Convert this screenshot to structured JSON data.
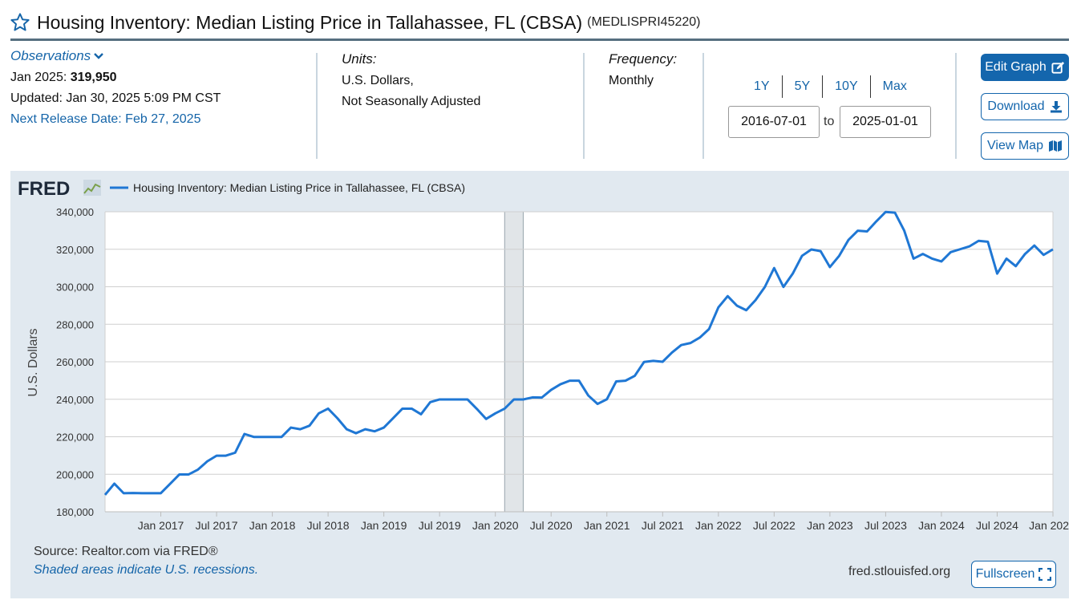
{
  "header": {
    "title": "Housing Inventory: Median Listing Price in Tallahassee, FL (CBSA)",
    "series_id": "(MEDLISPRI45220)"
  },
  "observations": {
    "toggle_label": "Observations",
    "latest_label": "Jan 2025:",
    "latest_value": "319,950",
    "updated": "Updated: Jan 30, 2025 5:09 PM CST",
    "next_release": "Next Release Date: Feb 27, 2025"
  },
  "units": {
    "label": "Units:",
    "line1": "U.S. Dollars,",
    "line2": "Not Seasonally Adjusted"
  },
  "frequency": {
    "label": "Frequency:",
    "value": "Monthly"
  },
  "range": {
    "buttons": [
      "1Y",
      "5Y",
      "10Y",
      "Max"
    ],
    "start": "2016-07-01",
    "to_label": "to",
    "end": "2025-01-01"
  },
  "actions": {
    "edit_graph": "Edit Graph",
    "download": "Download",
    "view_map": "View Map"
  },
  "footer": {
    "source": "Source: Realtor.com via FRED®",
    "recession_note": "Shaded areas indicate U.S. recessions.",
    "url": "fred.stlouisfed.org",
    "fullscreen": "Fullscreen"
  },
  "colors": {
    "line": "#1f77d4",
    "link": "#1565a9",
    "panel": "#e1e9f0",
    "recession": "#e1e5e8"
  },
  "chart_data": {
    "type": "line",
    "logo": "FRED",
    "legend": "Housing Inventory: Median Listing Price in Tallahassee, FL (CBSA)",
    "ylabel": "U.S. Dollars",
    "ylim": [
      180000,
      340000
    ],
    "y_ticks": [
      180000,
      200000,
      220000,
      240000,
      260000,
      280000,
      300000,
      320000,
      340000
    ],
    "y_tick_labels": [
      "180,000",
      "200,000",
      "220,000",
      "240,000",
      "260,000",
      "280,000",
      "300,000",
      "320,000",
      "340,000"
    ],
    "x_tick_labels": [
      "Jan 2017",
      "Jul 2017",
      "Jan 2018",
      "Jul 2018",
      "Jan 2019",
      "Jul 2019",
      "Jan 2020",
      "Jul 2020",
      "Jan 2021",
      "Jul 2021",
      "Jan 2022",
      "Jul 2022",
      "Jan 2023",
      "Jul 2023",
      "Jan 2024",
      "Jul 2024",
      "Jan 202"
    ],
    "x_tick_month_index": [
      6,
      12,
      18,
      24,
      30,
      36,
      42,
      48,
      54,
      60,
      66,
      72,
      78,
      84,
      90,
      96,
      102
    ],
    "start": "2016-07",
    "recession": {
      "start_month_index": 43,
      "end_month_index": 45
    },
    "values": [
      189000,
      195000,
      189900,
      190000,
      189900,
      189900,
      189900,
      194900,
      199900,
      199900,
      202500,
      206900,
      209900,
      209900,
      211500,
      221500,
      219900,
      219900,
      219900,
      219900,
      224900,
      224000,
      225900,
      232500,
      235000,
      229900,
      224000,
      221900,
      224000,
      222900,
      224900,
      229900,
      235000,
      235000,
      232000,
      238500,
      239900,
      239900,
      239900,
      239900,
      234900,
      229500,
      232500,
      235000,
      239900,
      239900,
      241000,
      240900,
      245000,
      248000,
      249900,
      249900,
      242000,
      237500,
      240000,
      249500,
      249900,
      252500,
      259900,
      260500,
      260000,
      264900,
      268900,
      270000,
      272900,
      277500,
      289000,
      295000,
      289900,
      287500,
      292900,
      299900,
      310000,
      299900,
      307000,
      316500,
      319900,
      319000,
      310500,
      316500,
      325000,
      329900,
      329500,
      334900,
      339900,
      339500,
      329900,
      315000,
      317500,
      315000,
      313500,
      318500,
      320000,
      321500,
      324500,
      324000,
      307000,
      315000,
      311000,
      317500,
      322000,
      317000,
      319950
    ]
  }
}
